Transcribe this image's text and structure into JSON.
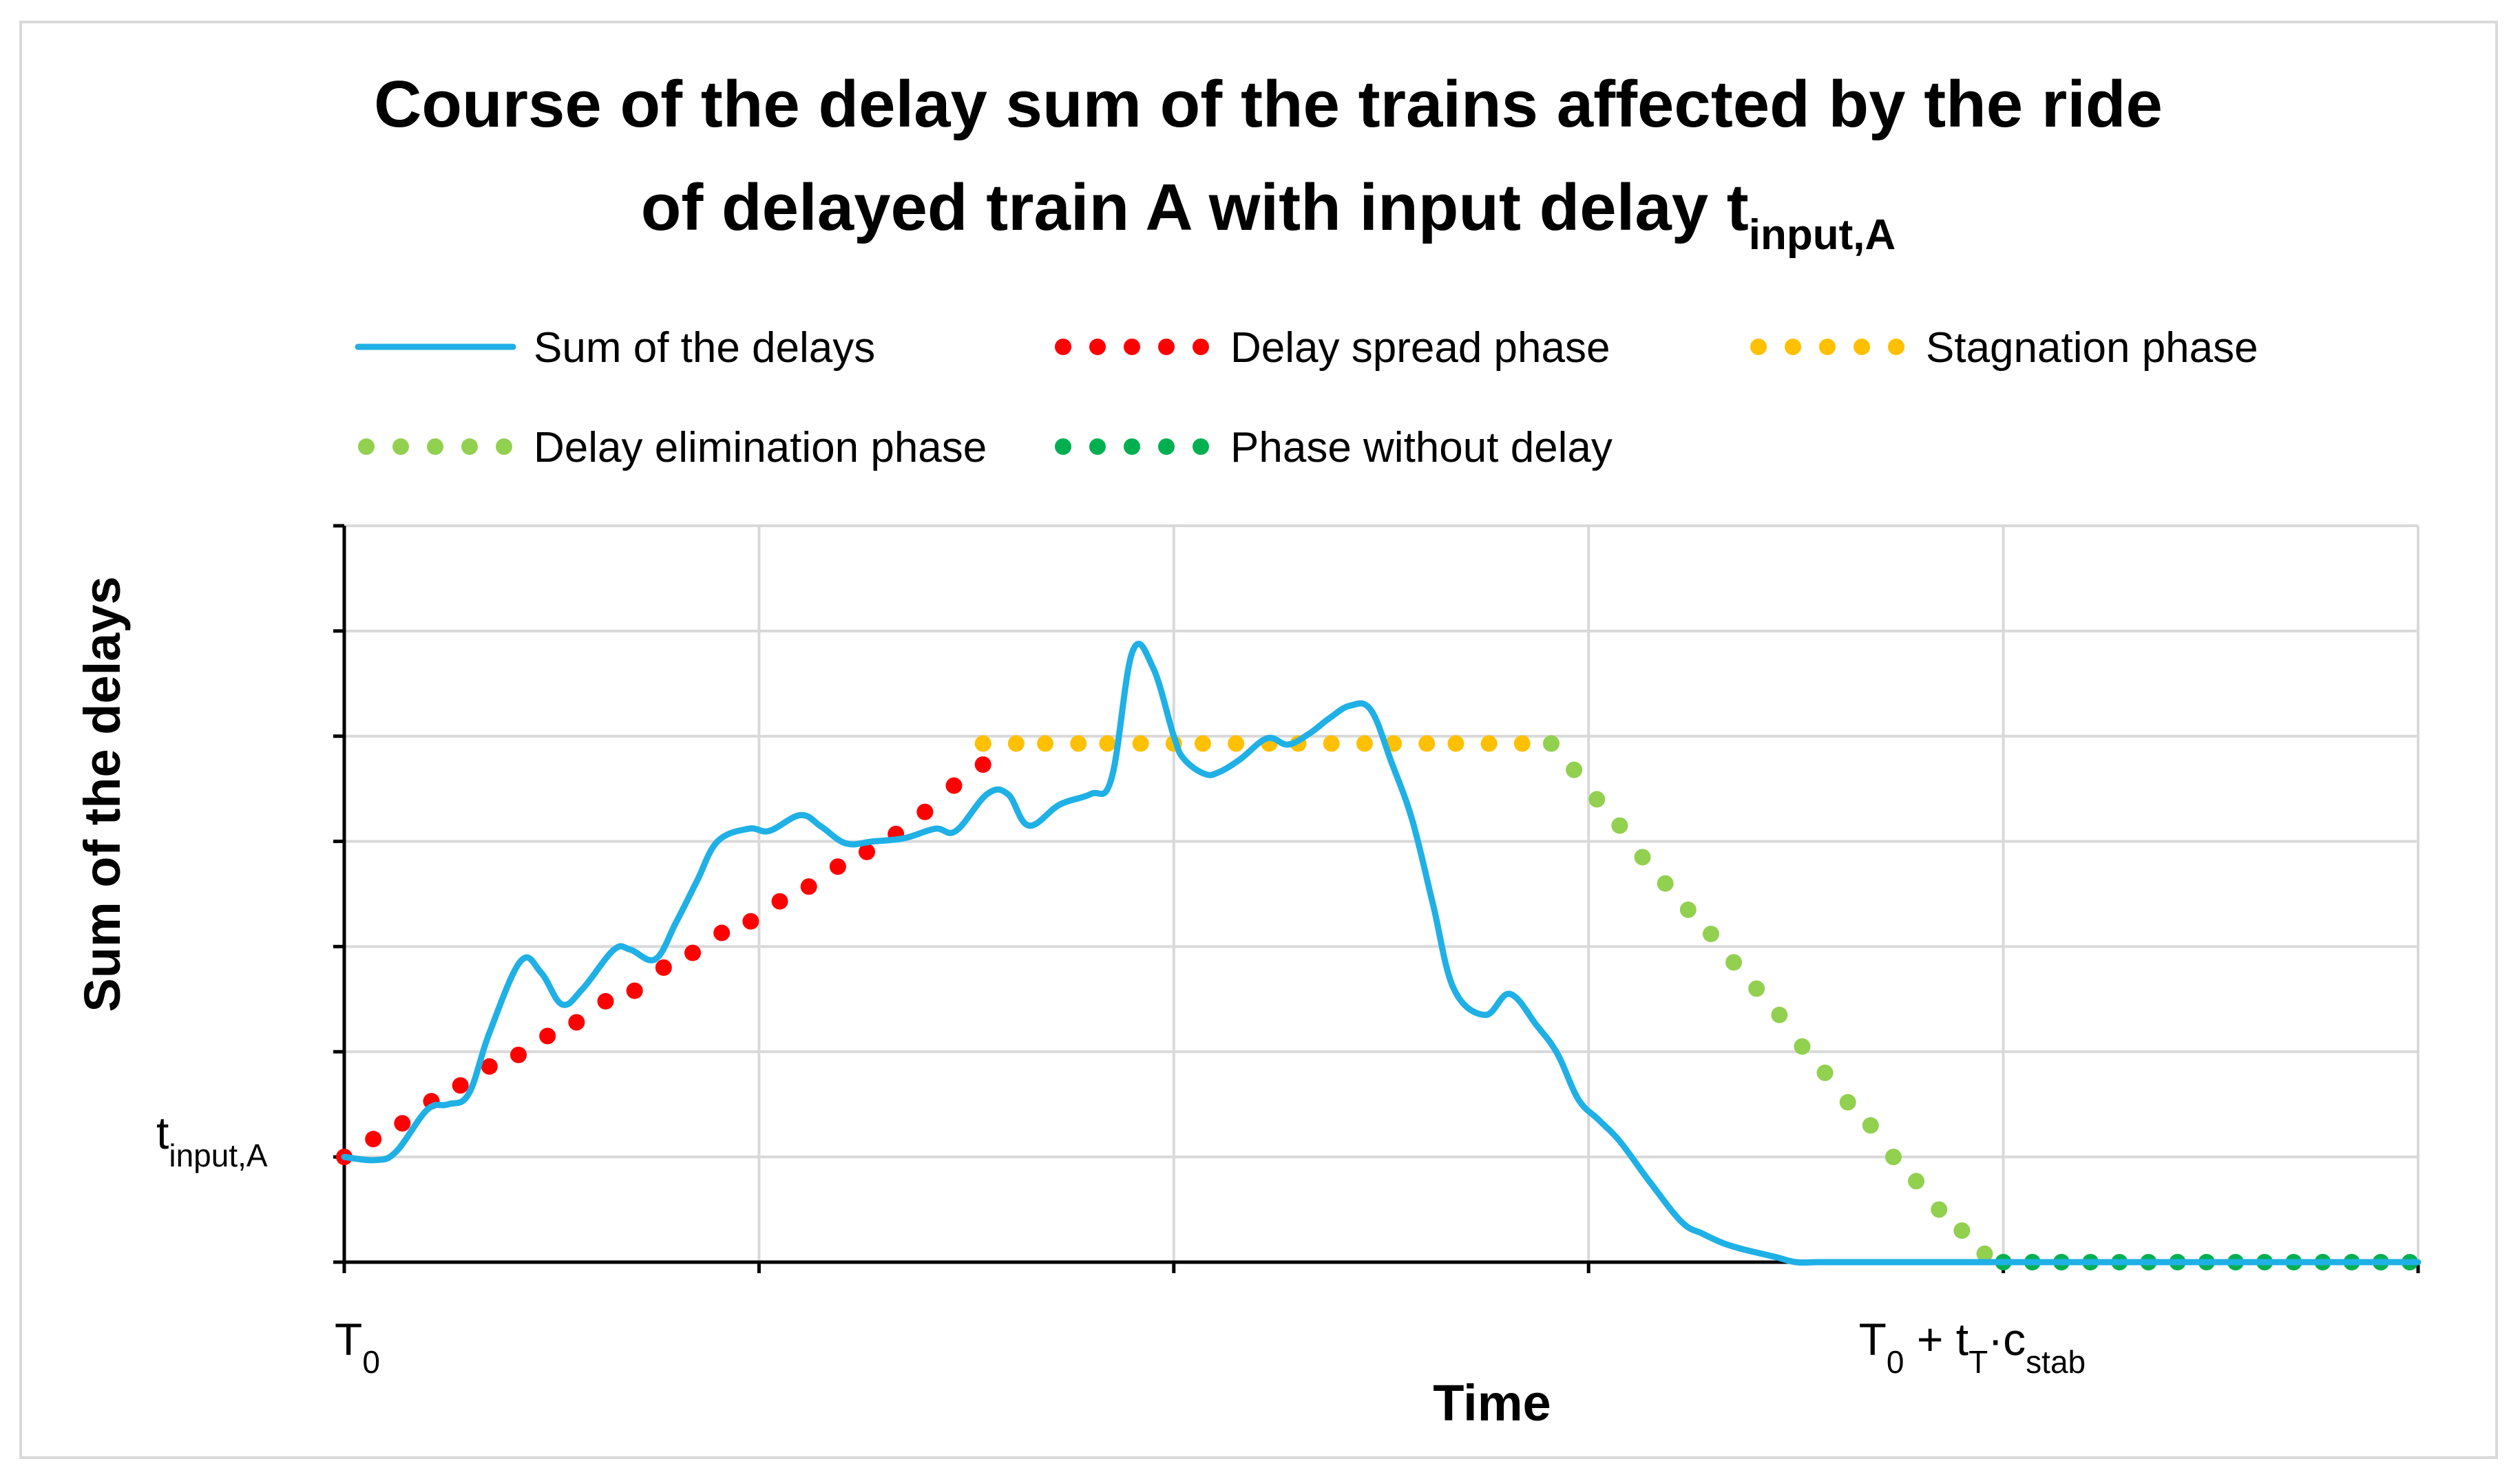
{
  "chart_data": {
    "type": "line",
    "title": {
      "line1": "Course of the delay sum of the trains affected by the ride",
      "line2_main": "of delayed train A with input delay t",
      "line2_sub": "input,A"
    },
    "xlabel": "Time",
    "ylabel": "Sum of the delays",
    "xlim": [
      0,
      10
    ],
    "ylim": [
      0,
      7
    ],
    "grid": true,
    "legend": {
      "placement": "top",
      "entries": [
        {
          "key": "sum",
          "label": "Sum of the delays",
          "style": "line",
          "color": "#1fb0e6"
        },
        {
          "key": "spread",
          "label": "Delay spread phase",
          "style": "dots",
          "color": "#ff0000"
        },
        {
          "key": "stagnation",
          "label": "Stagnation phase",
          "style": "dots",
          "color": "#ffc000"
        },
        {
          "key": "elimination",
          "label": "Delay elimination phase",
          "style": "dots",
          "color": "#92d050"
        },
        {
          "key": "nodelay",
          "label": "Phase without delay",
          "style": "dots",
          "color": "#00b050"
        }
      ]
    },
    "x_ticks": [
      {
        "x": 0,
        "main": "T",
        "sub": "0",
        "rest": []
      },
      {
        "x": 8,
        "main": "T",
        "sub": "0",
        "rest": [
          {
            "t": " + t",
            "s": "T"
          },
          {
            "t": "·c",
            "s": "stab"
          }
        ]
      }
    ],
    "y_ticks": [
      {
        "y": 1,
        "main": "t",
        "sub": "input,A"
      }
    ],
    "series": [
      {
        "name": "Sum of the delays",
        "key": "sum",
        "color": "#1fb0e6",
        "x": [
          0,
          0.15,
          0.25,
          0.4,
          0.5,
          0.6,
          0.7,
          0.85,
          0.95,
          1.05,
          1.15,
          1.3,
          1.38,
          1.5,
          1.6,
          1.7,
          1.8,
          1.95,
          2.05,
          2.2,
          2.3,
          2.42,
          2.55,
          2.7,
          2.85,
          2.95,
          3.1,
          3.2,
          3.3,
          3.45,
          3.6,
          3.7,
          3.8,
          3.9,
          4.0,
          4.05,
          4.15,
          4.22,
          4.32,
          4.45,
          4.55,
          4.65,
          4.75,
          4.85,
          4.95,
          5.05,
          5.15,
          5.25,
          5.35,
          5.5,
          5.62,
          5.75,
          5.85,
          5.95,
          6.05,
          6.15,
          6.3,
          6.45,
          6.55,
          6.65,
          6.75,
          6.9,
          7.0,
          7.1,
          7.2,
          7.35,
          7.5,
          7.6,
          7.75,
          7.85,
          7.95,
          8.0,
          8.3,
          8.6,
          9.0,
          10.0
        ],
        "values": [
          1.0,
          0.97,
          1.05,
          1.45,
          1.5,
          1.6,
          2.18,
          2.86,
          2.75,
          2.45,
          2.6,
          2.97,
          2.97,
          2.88,
          3.23,
          3.62,
          4.0,
          4.12,
          4.1,
          4.25,
          4.14,
          3.98,
          4.0,
          4.03,
          4.12,
          4.1,
          4.45,
          4.45,
          4.15,
          4.35,
          4.45,
          4.6,
          5.8,
          5.65,
          5.0,
          4.78,
          4.64,
          4.66,
          4.78,
          4.98,
          4.92,
          5.02,
          5.17,
          5.29,
          5.25,
          4.75,
          4.2,
          3.4,
          2.6,
          2.35,
          2.55,
          2.25,
          1.98,
          1.55,
          1.35,
          1.15,
          0.75,
          0.38,
          0.27,
          0.18,
          0.12,
          0.05,
          0.0,
          0.0,
          0.0,
          0.0,
          0.0,
          0.0,
          0.0,
          0.0,
          0.0,
          0.0,
          0.0,
          0.0,
          0.0,
          0.0
        ]
      },
      {
        "name": "Delay spread phase",
        "key": "spread",
        "color": "#ff0000",
        "x": [
          0,
          0.14,
          0.28,
          0.42,
          0.56,
          0.7,
          0.84,
          0.98,
          1.12,
          1.26,
          1.4,
          1.54,
          1.68,
          1.82,
          1.96,
          2.1,
          2.24,
          2.38,
          2.52,
          2.66,
          2.8,
          2.94,
          3.08
        ],
        "values": [
          1.0,
          1.17,
          1.32,
          1.53,
          1.68,
          1.86,
          1.97,
          2.15,
          2.28,
          2.48,
          2.58,
          2.8,
          2.94,
          3.13,
          3.24,
          3.43,
          3.57,
          3.76,
          3.9,
          4.07,
          4.28,
          4.53,
          4.73
        ]
      },
      {
        "name": "Stagnation phase",
        "key": "stagnation",
        "color": "#ffc000",
        "x": [
          3.08,
          3.24,
          3.38,
          3.54,
          3.68,
          3.84,
          4.0,
          4.14,
          4.3,
          4.46,
          4.6,
          4.76,
          4.92,
          5.06,
          5.22,
          5.36,
          5.52,
          5.68,
          5.82
        ],
        "values": [
          4.93,
          4.93,
          4.93,
          4.93,
          4.93,
          4.93,
          4.93,
          4.93,
          4.93,
          4.93,
          4.93,
          4.93,
          4.93,
          4.93,
          4.93,
          4.93,
          4.93,
          4.93,
          4.93
        ]
      },
      {
        "name": "Delay elimination phase",
        "key": "elimination",
        "color": "#92d050",
        "x": [
          5.82,
          5.93,
          6.04,
          6.15,
          6.26,
          6.37,
          6.48,
          6.59,
          6.7,
          6.81,
          6.92,
          7.03,
          7.14,
          7.25,
          7.36,
          7.47,
          7.58,
          7.69,
          7.8,
          7.91
        ],
        "values": [
          4.93,
          4.68,
          4.4,
          4.15,
          3.85,
          3.6,
          3.35,
          3.12,
          2.85,
          2.6,
          2.35,
          2.05,
          1.8,
          1.52,
          1.3,
          1.0,
          0.77,
          0.5,
          0.3,
          0.08
        ]
      },
      {
        "name": "Phase without delay",
        "key": "nodelay",
        "color": "#00b050",
        "x": [
          8.0,
          8.14,
          8.28,
          8.42,
          8.56,
          8.7,
          8.84,
          8.98,
          9.12,
          9.26,
          9.4,
          9.54,
          9.68,
          9.82,
          9.96
        ],
        "values": [
          0,
          0,
          0,
          0,
          0,
          0,
          0,
          0,
          0,
          0,
          0,
          0,
          0,
          0,
          0
        ]
      }
    ]
  }
}
